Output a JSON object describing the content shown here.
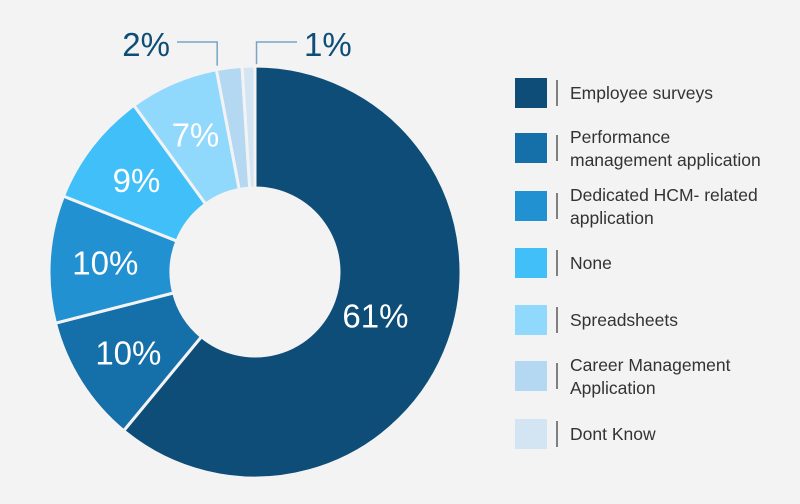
{
  "chart_data": {
    "type": "pie",
    "variant": "donut",
    "title": "",
    "categories": [
      "Employee surveys",
      "Performance management application",
      "Dedicated HCM- related application",
      "None",
      "Spreadsheets",
      "Career Management Application",
      "Dont Know"
    ],
    "values": [
      61,
      10,
      10,
      9,
      7,
      2,
      1
    ],
    "value_labels": [
      "61%",
      "10%",
      "10%",
      "9%",
      "7%",
      "2%",
      "1%"
    ],
    "legend": {
      "placement": "right",
      "entries": [
        {
          "lines": [
            "Employee surveys"
          ],
          "color": "#0d4d77"
        },
        {
          "lines": [
            "Performance",
            "management application"
          ],
          "color": "#156fa9"
        },
        {
          "lines": [
            "Dedicated HCM- related",
            "application"
          ],
          "color": "#2191d2"
        },
        {
          "lines": [
            "None"
          ],
          "color": "#41bff8"
        },
        {
          "lines": [
            "Spreadsheets"
          ],
          "color": "#90d8fc"
        },
        {
          "lines": [
            "Career Management",
            "Application"
          ],
          "color": "#b4d8f1"
        },
        {
          "lines": [
            "Dont Know"
          ],
          "color": "#d3e5f3"
        }
      ]
    },
    "colors": [
      "#0d4d77",
      "#156fa9",
      "#2191d2",
      "#41bff8",
      "#90d8fc",
      "#b4d8f1",
      "#d3e5f3"
    ],
    "external_labels": [
      2,
      1
    ]
  },
  "style": {
    "background": "#f3f3f3",
    "label_inside_color": "#ffffff",
    "label_outside_color": "#0d4d77",
    "separator_color": "#f3f3f3",
    "legend_divider_color": "#333333"
  }
}
